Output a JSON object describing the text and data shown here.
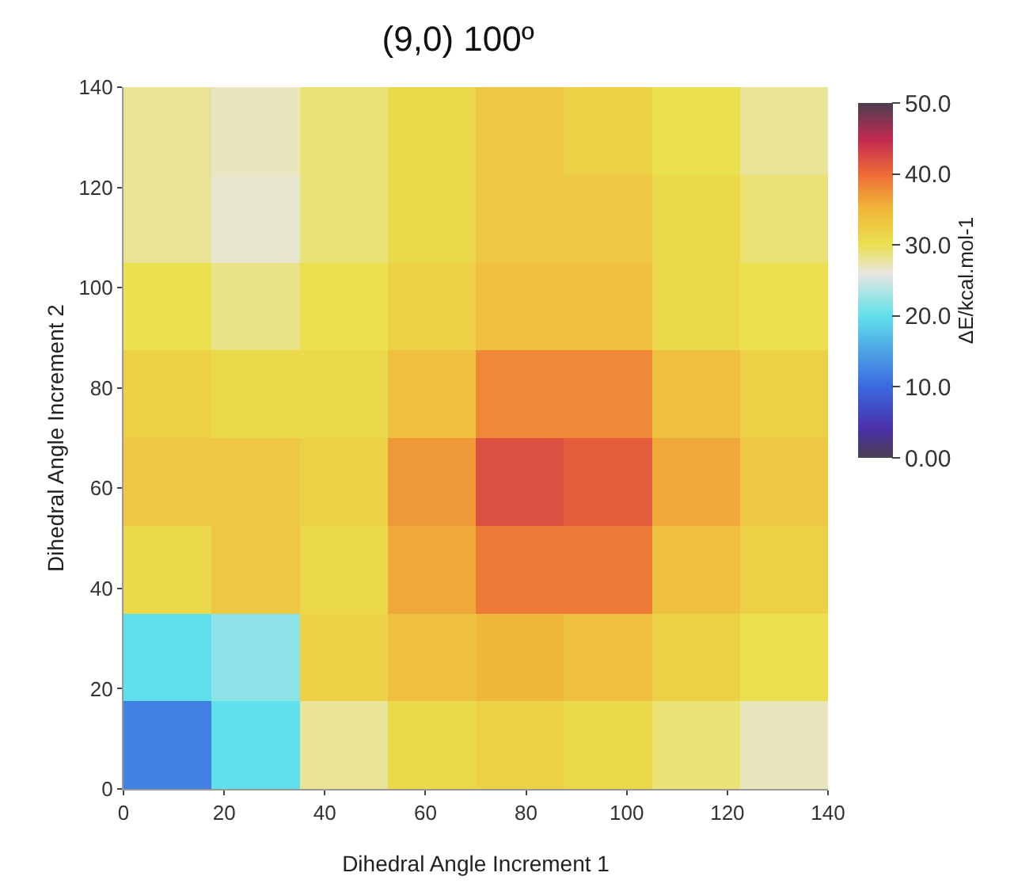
{
  "chart_data": {
    "type": "heatmap",
    "title": "(9,0) 100º",
    "xlabel": "Dihedral Angle Increment 1",
    "ylabel": "Dihedral Angle Increment 2",
    "clabel": "ΔE/kcal.mol-1",
    "categories": [
      "0",
      "20",
      "40",
      "60",
      "80",
      "100",
      "120",
      "140"
    ],
    "y_categories": [
      "140",
      "120",
      "100",
      "80",
      "60",
      "40",
      "20",
      "0"
    ],
    "cells": [
      [
        28,
        27,
        29,
        31,
        33,
        32,
        30,
        28
      ],
      [
        28,
        26.5,
        29,
        31,
        33,
        33,
        31,
        29
      ],
      [
        30,
        28.5,
        30,
        32,
        34,
        34,
        31,
        30
      ],
      [
        32,
        31,
        31,
        34,
        38,
        38,
        34,
        32
      ],
      [
        33,
        33,
        32,
        37,
        42,
        41,
        36,
        33
      ],
      [
        31,
        33,
        31,
        36,
        39,
        39,
        34,
        32
      ],
      [
        20,
        22,
        32,
        34,
        35,
        34,
        32,
        30
      ],
      [
        12,
        20,
        28,
        31,
        32,
        31,
        29,
        27
      ]
    ],
    "clim": [
      0,
      50
    ],
    "cticks": [
      {
        "value": 0,
        "label": "0.00"
      },
      {
        "value": 10,
        "label": "10.0"
      },
      {
        "value": 20,
        "label": "20.0"
      },
      {
        "value": 30,
        "label": "30.0"
      },
      {
        "value": 40,
        "label": "40.0"
      },
      {
        "value": 50,
        "label": "50.0"
      }
    ]
  }
}
